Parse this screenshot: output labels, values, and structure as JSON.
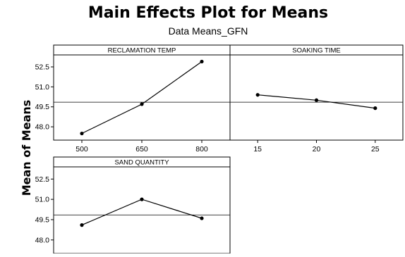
{
  "chart_data": {
    "type": "line",
    "title": "Main Effects Plot for Means",
    "subtitle": "Data Means_GFN",
    "ylabel": "Mean of Means",
    "ylim": [
      47.0,
      53.4
    ],
    "yticks": [
      "52.5",
      "51.0",
      "49.5",
      "48.0"
    ],
    "ytick_values": [
      52.5,
      51.0,
      49.5,
      48.0
    ],
    "reference_line": 49.85,
    "panels": [
      {
        "title": "RECLAMATION TEMP",
        "categories": [
          "500",
          "650",
          "800"
        ],
        "values": [
          47.5,
          49.7,
          52.9
        ]
      },
      {
        "title": "SOAKING TIME",
        "categories": [
          "15",
          "20",
          "25"
        ],
        "values": [
          50.4,
          50.0,
          49.4
        ]
      },
      {
        "title": "SAND QUANTITY",
        "categories": [
          "",
          "",
          ""
        ],
        "values": [
          49.1,
          51.0,
          49.6
        ]
      }
    ],
    "marker": "filled-circle",
    "line_color": "#000000"
  }
}
